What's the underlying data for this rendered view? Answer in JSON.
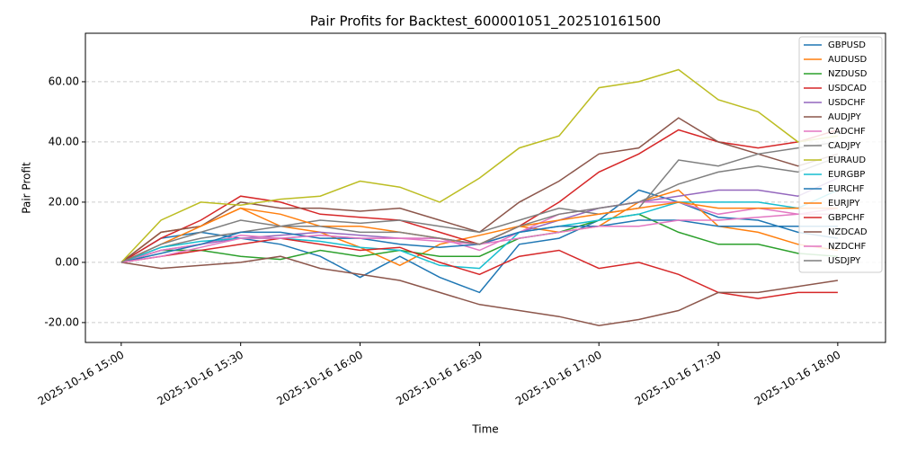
{
  "chart_data": {
    "type": "line",
    "title": "Pair Profits for Backtest_600001051_202510161500",
    "x_label": "Time",
    "y_label": "Pair Profit",
    "x": [
      "2025-10-16 15:00",
      "2025-10-16 15:10",
      "2025-10-16 15:20",
      "2025-10-16 15:30",
      "2025-10-16 15:40",
      "2025-10-16 15:50",
      "2025-10-16 16:00",
      "2025-10-16 16:10",
      "2025-10-16 16:20",
      "2025-10-16 16:30",
      "2025-10-16 16:40",
      "2025-10-16 16:50",
      "2025-10-16 17:00",
      "2025-10-16 17:10",
      "2025-10-16 17:20",
      "2025-10-16 17:30",
      "2025-10-16 17:40",
      "2025-10-16 17:50",
      "2025-10-16 18:00"
    ],
    "xlim": [
      "2025-10-16 14:51",
      "2025-10-16 18:12"
    ],
    "xticks": [
      "2025-10-16 15:00",
      "2025-10-16 15:30",
      "2025-10-16 16:00",
      "2025-10-16 16:30",
      "2025-10-16 17:00",
      "2025-10-16 17:30",
      "2025-10-16 18:00"
    ],
    "ylim": [
      -26.6,
      76.1
    ],
    "yticks": [
      {
        "value": -20,
        "label": "-20.00"
      },
      {
        "value": 0,
        "label": "0.00"
      },
      {
        "value": 20,
        "label": "20.00"
      },
      {
        "value": 40,
        "label": "40.00"
      },
      {
        "value": 60,
        "label": "60.00"
      }
    ],
    "grid": true,
    "legend": "upper right",
    "series": [
      {
        "name": "GBPUSD",
        "color": "#1f77b4",
        "values": [
          0,
          8,
          10,
          8,
          6,
          2,
          -5,
          2,
          -5,
          -10,
          6,
          8,
          14,
          24,
          20,
          15,
          14,
          10,
          8
        ]
      },
      {
        "name": "AUDUSD",
        "color": "#ff7f0e",
        "values": [
          0,
          10,
          12,
          18,
          12,
          10,
          5,
          -1,
          6,
          9,
          12,
          10,
          12,
          20,
          24,
          12,
          10,
          6,
          4
        ]
      },
      {
        "name": "NZDUSD",
        "color": "#2ca02c",
        "values": [
          0,
          4,
          4,
          2,
          1,
          4,
          2,
          4,
          2,
          2,
          8,
          10,
          14,
          16,
          10,
          6,
          6,
          3,
          2
        ]
      },
      {
        "name": "USDCAD",
        "color": "#d62728",
        "values": [
          0,
          8,
          14,
          22,
          20,
          16,
          15,
          14,
          10,
          6,
          12,
          20,
          30,
          36,
          44,
          40,
          38,
          40,
          44
        ]
      },
      {
        "name": "USDCHF",
        "color": "#9467bd",
        "values": [
          0,
          4,
          6,
          8,
          9,
          10,
          9,
          8,
          8,
          6,
          10,
          14,
          18,
          20,
          22,
          24,
          24,
          22,
          28
        ]
      },
      {
        "name": "AUDJPY",
        "color": "#8c564b",
        "values": [
          0,
          10,
          12,
          20,
          18,
          18,
          17,
          18,
          14,
          10,
          20,
          27,
          36,
          38,
          48,
          40,
          36,
          32,
          36
        ]
      },
      {
        "name": "CADCHF",
        "color": "#e377c2",
        "values": [
          0,
          4,
          6,
          9,
          8,
          9,
          8,
          8,
          8,
          4,
          10,
          16,
          18,
          20,
          20,
          16,
          18,
          16,
          18
        ]
      },
      {
        "name": "CADJPY",
        "color": "#7f7f7f",
        "values": [
          0,
          5,
          8,
          10,
          12,
          14,
          13,
          14,
          12,
          10,
          14,
          18,
          16,
          18,
          34,
          32,
          36,
          38,
          40
        ]
      },
      {
        "name": "EURAUD",
        "color": "#bcbd22",
        "values": [
          0,
          14,
          20,
          19,
          21,
          22,
          27,
          25,
          20,
          28,
          38,
          42,
          58,
          60,
          64,
          54,
          50,
          40,
          42
        ]
      },
      {
        "name": "EURGBP",
        "color": "#17becf",
        "values": [
          0,
          5,
          7,
          8,
          8,
          7,
          5,
          4,
          -1,
          -2,
          10,
          12,
          14,
          16,
          20,
          20,
          20,
          18,
          24
        ]
      },
      {
        "name": "EURCHF",
        "color": "#1f77b4",
        "values": [
          0,
          3,
          6,
          10,
          10,
          8,
          8,
          6,
          5,
          6,
          10,
          12,
          12,
          14,
          14,
          12,
          12,
          12,
          12
        ]
      },
      {
        "name": "EURJPY",
        "color": "#ff7f0e",
        "values": [
          0,
          6,
          12,
          18,
          16,
          12,
          12,
          10,
          8,
          6,
          12,
          14,
          16,
          18,
          20,
          18,
          18,
          18,
          18
        ]
      },
      {
        "name": "GBPCHF",
        "color": "#d62728",
        "values": [
          0,
          2,
          4,
          6,
          8,
          6,
          4,
          5,
          0,
          -4,
          2,
          4,
          -2,
          0,
          -4,
          -10,
          -12,
          -10,
          -10
        ]
      },
      {
        "name": "NZDCAD",
        "color": "#8c564b",
        "values": [
          0,
          -2,
          -1,
          0,
          2,
          -2,
          -4,
          -6,
          -10,
          -14,
          -16,
          -18,
          -21,
          -19,
          -16,
          -10,
          -10,
          -8,
          -6
        ]
      },
      {
        "name": "NZDCHF",
        "color": "#e377c2",
        "values": [
          0,
          2,
          5,
          8,
          8,
          9,
          8,
          8,
          7,
          6,
          8,
          10,
          12,
          12,
          14,
          14,
          15,
          16,
          16
        ]
      },
      {
        "name": "USDJPY",
        "color": "#7f7f7f",
        "values": [
          0,
          6,
          10,
          14,
          12,
          12,
          10,
          10,
          8,
          6,
          12,
          16,
          18,
          20,
          26,
          30,
          32,
          30,
          35
        ]
      }
    ]
  }
}
